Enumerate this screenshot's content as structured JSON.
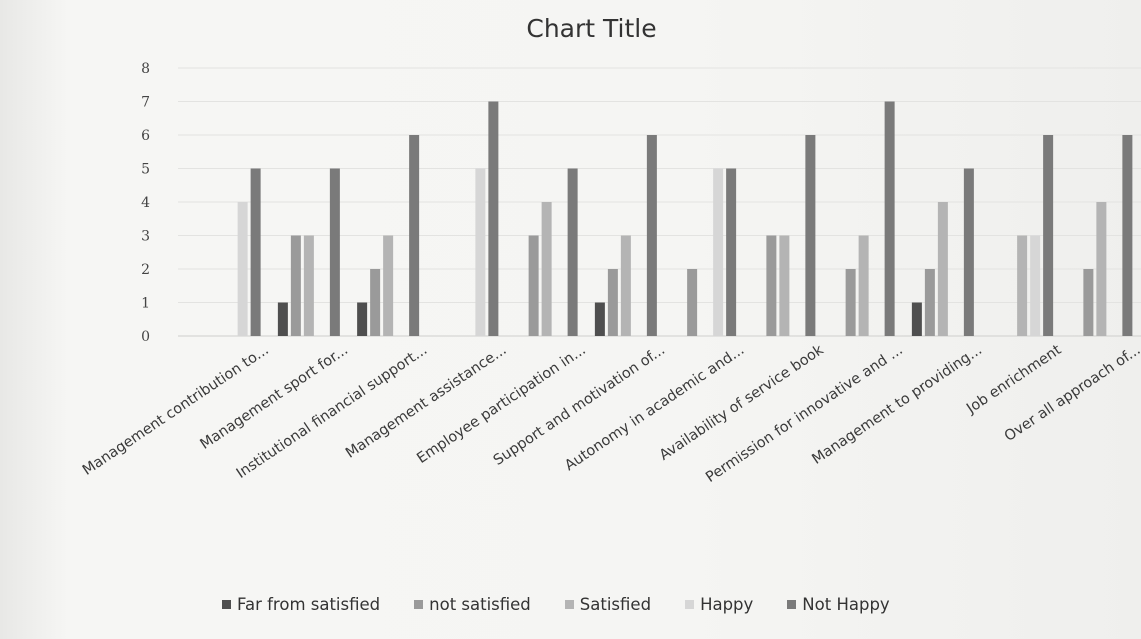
{
  "chart_data": {
    "type": "bar",
    "title": "Chart Title",
    "ylim": [
      0,
      8
    ],
    "yticks": [
      "0",
      "1",
      "2",
      "3",
      "4",
      "5",
      "6",
      "7",
      "8"
    ],
    "grid": true,
    "legend_position": "bottom",
    "categories": [
      "Management contribution to...",
      "Management sport for...",
      "Institutional financial support...",
      "Management assistance...",
      "Employee participation in...",
      "Support and motivation of...",
      "Autonomy in academic and...",
      "Availability of service book",
      "Permission for innovative and ...",
      "Management to providing...",
      "Job enrichment",
      "Over all approach of..."
    ],
    "series": [
      {
        "name": "Far from satisfied",
        "color": "#4f4f4f",
        "values": [
          0,
          1,
          1,
          0,
          0,
          1,
          0,
          0,
          0,
          1,
          0,
          0
        ]
      },
      {
        "name": "not satisfied",
        "color": "#9a9a9a",
        "values": [
          0,
          3,
          2,
          0,
          3,
          2,
          2,
          3,
          2,
          2,
          0,
          2
        ]
      },
      {
        "name": "Satisfied",
        "color": "#b4b4b4",
        "values": [
          0,
          3,
          3,
          0,
          4,
          3,
          0,
          3,
          3,
          4,
          3,
          4
        ]
      },
      {
        "name": "Happy",
        "color": "#d6d6d6",
        "values": [
          4,
          0,
          0,
          5,
          0,
          0,
          5,
          0,
          0,
          0,
          3,
          0
        ]
      },
      {
        "name": "Not Happy",
        "color": "#7a7a7a",
        "values": [
          5,
          5,
          6,
          7,
          5,
          6,
          5,
          6,
          7,
          5,
          6,
          6
        ]
      }
    ]
  }
}
